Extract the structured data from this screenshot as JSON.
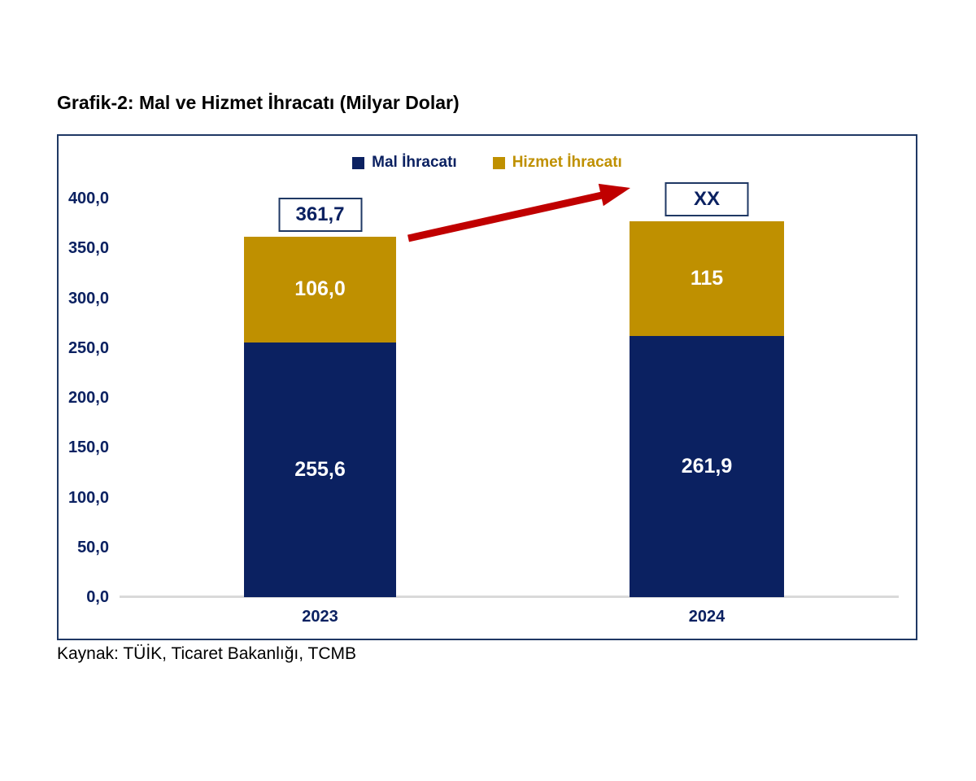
{
  "title": "Grafik-2: Mal ve Hizmet İhracatı (Milyar Dolar)",
  "source": "Kaynak: TÜİK, Ticaret Bakanlığı, TCMB",
  "colors": {
    "navy": "#0b2161",
    "gold": "#bf9000",
    "arrow_red": "#c00000",
    "axis_gray": "#d9d9d9",
    "border_navy": "#1f3864",
    "bar_label_white": "#ffffff",
    "text_black": "#000000"
  },
  "legend": [
    {
      "label": "Mal İhracatı",
      "color_key": "navy"
    },
    {
      "label": "Hizmet İhracatı",
      "color_key": "gold"
    }
  ],
  "chart_data": {
    "type": "bar",
    "stacked": true,
    "title": "Grafik-2: Mal ve Hizmet İhracatı (Milyar Dolar)",
    "categories": [
      "2023",
      "2024"
    ],
    "series": [
      {
        "name": "Mal İhracatı",
        "values": [
          255.6,
          261.9
        ],
        "labels": [
          "255,6",
          "261,9"
        ],
        "color": "#0b2161"
      },
      {
        "name": "Hizmet İhracatı",
        "values": [
          106.0,
          115
        ],
        "labels": [
          "106,0",
          "115"
        ],
        "color": "#bf9000"
      }
    ],
    "totals": {
      "values": [
        361.7,
        null
      ],
      "labels": [
        "361,7",
        "XX"
      ]
    },
    "ylim": [
      0,
      400
    ],
    "ytick_values": [
      400,
      350,
      300,
      250,
      200,
      150,
      100,
      50,
      0
    ],
    "yticks": [
      "400,0",
      "350,0",
      "300,0",
      "250,0",
      "200,0",
      "150,0",
      "100,0",
      "50,0",
      "0,0"
    ],
    "grid": false,
    "legend_position": "top-center",
    "annotation": "red increase arrow from 2023 total box to 2024 total box"
  }
}
